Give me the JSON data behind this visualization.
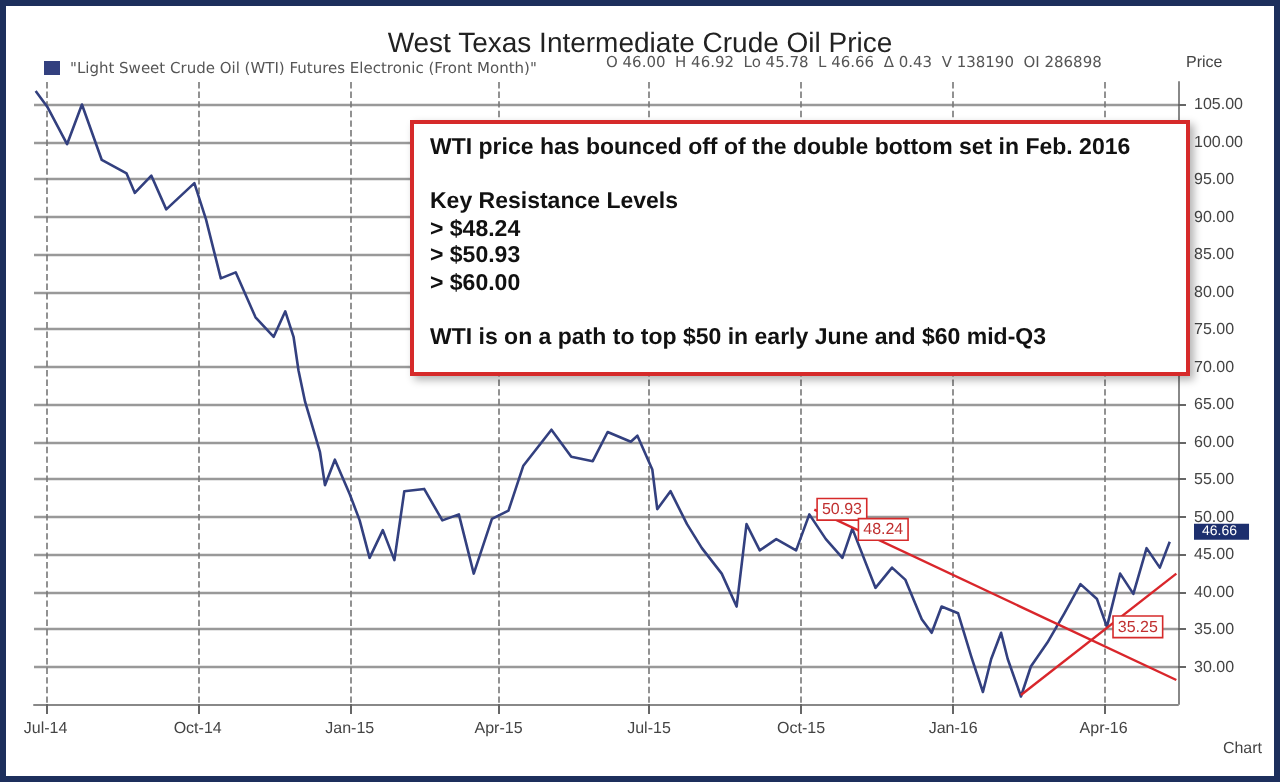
{
  "chart_data": {
    "type": "line",
    "title": "West Texas Intermediate Crude Oil Price",
    "ylabel": "Price",
    "x": [
      "2014-06-25",
      "2014-07-02",
      "2014-07-14",
      "2014-07-23",
      "2014-08-04",
      "2014-08-19",
      "2014-08-24",
      "2014-09-03",
      "2014-09-12",
      "2014-09-29",
      "2014-10-06",
      "2014-10-15",
      "2014-10-24",
      "2014-11-05",
      "2014-11-16",
      "2014-11-23",
      "2014-11-28",
      "2014-12-01",
      "2014-12-05",
      "2014-12-10",
      "2014-12-14",
      "2014-12-17",
      "2014-12-23",
      "2015-01-01",
      "2015-01-07",
      "2015-01-13",
      "2015-01-21",
      "2015-01-28",
      "2015-02-03",
      "2015-02-15",
      "2015-02-26",
      "2015-03-08",
      "2015-03-17",
      "2015-03-28",
      "2015-04-07",
      "2015-04-16",
      "2015-05-03",
      "2015-05-15",
      "2015-05-28",
      "2015-06-06",
      "2015-06-20",
      "2015-06-24",
      "2015-07-03",
      "2015-07-06",
      "2015-07-14",
      "2015-07-24",
      "2015-08-02",
      "2015-08-14",
      "2015-08-23",
      "2015-08-29",
      "2015-09-06",
      "2015-09-16",
      "2015-09-28",
      "2015-10-06",
      "2015-10-16",
      "2015-10-26",
      "2015-11-01",
      "2015-11-15",
      "2015-11-25",
      "2015-12-03",
      "2015-12-13",
      "2015-12-19",
      "2015-12-25",
      "2016-01-04",
      "2016-01-12",
      "2016-01-19",
      "2016-01-24",
      "2016-01-30",
      "2016-02-03",
      "2016-02-11",
      "2016-02-17",
      "2016-02-27",
      "2016-03-08",
      "2016-03-18",
      "2016-03-28",
      "2016-04-03",
      "2016-04-11",
      "2016-04-19",
      "2016-04-27",
      "2016-05-05",
      "2016-05-11"
    ],
    "series": [
      {
        "name": "\"Light Sweet Crude Oil (WTI) Futures Electronic (Front Month)\"",
        "color": "#33407f",
        "values": [
          106.8,
          104.7,
          99.7,
          105,
          97.6,
          95.8,
          93.2,
          95.5,
          91,
          94.5,
          89.7,
          81.8,
          82.6,
          76.6,
          74,
          77.4,
          74,
          69.5,
          65.3,
          61.6,
          58.6,
          54.2,
          57.6,
          53,
          49.5,
          44.5,
          48.2,
          44.2,
          53.4,
          53.7,
          49.5,
          50.3,
          42.4,
          49.7,
          50.8,
          56.8,
          61.6,
          58,
          57.4,
          61.3,
          60,
          60.8,
          56.3,
          51,
          53.4,
          49,
          45.8,
          42.4,
          38,
          49,
          45.5,
          47,
          45.5,
          50.3,
          47,
          44.5,
          48.4,
          40.5,
          43.2,
          41.6,
          36.3,
          34.5,
          38,
          37.1,
          31.3,
          26.6,
          31,
          34.5,
          31,
          26,
          30,
          33.2,
          37,
          41,
          39,
          35.3,
          42.4,
          39.7,
          45.8,
          43.2,
          46.66
        ]
      },
      {
        "type": "line",
        "color": "#d9262b",
        "x": [
          "2015-10-09",
          "2016-05-15"
        ],
        "values": [
          50.93,
          28.2
        ]
      },
      {
        "type": "line",
        "color": "#d9262b",
        "x": [
          "2016-02-11",
          "2016-05-15"
        ],
        "values": [
          26.2,
          42.4
        ]
      }
    ],
    "xlim": [
      "2014-06-24",
      "2016-05-16"
    ],
    "xticks": [
      {
        "value": "2014-07-01",
        "label": "Jul-14"
      },
      {
        "value": "2014-10-01",
        "label": "Oct-14"
      },
      {
        "value": "2015-01-01",
        "label": "Jan-15"
      },
      {
        "value": "2015-04-01",
        "label": "Apr-15"
      },
      {
        "value": "2015-07-01",
        "label": "Jul-15"
      },
      {
        "value": "2015-10-01",
        "label": "Oct-15"
      },
      {
        "value": "2016-01-01",
        "label": "Jan-16"
      },
      {
        "value": "2016-04-01",
        "label": "Apr-16"
      }
    ],
    "ylim": [
      25,
      108
    ],
    "yticks": [
      {
        "value": 30,
        "label": "30.00"
      },
      {
        "value": 35,
        "label": "35.00"
      },
      {
        "value": 40,
        "label": "40.00"
      },
      {
        "value": 45,
        "label": "45.00"
      },
      {
        "value": 50,
        "label": "50.00"
      },
      {
        "value": 55,
        "label": "55.00"
      },
      {
        "value": 60,
        "label": "60.00"
      },
      {
        "value": 65,
        "label": "65.00"
      },
      {
        "value": 70,
        "label": "70.00"
      },
      {
        "value": 75,
        "label": "75.00"
      },
      {
        "value": 80,
        "label": "80.00"
      },
      {
        "value": 85,
        "label": "85.00"
      },
      {
        "value": 90,
        "label": "90.00"
      },
      {
        "value": 95,
        "label": "95.00"
      },
      {
        "value": 100,
        "label": "100.00"
      },
      {
        "value": 105,
        "label": "105.00"
      }
    ],
    "grid": true,
    "legend": "top left",
    "marker": "none",
    "line_style": "solid",
    "annotations": [
      "O 46.00  H 46.92  Lo 45.78  L 46.66  Δ 0.43  V 138190  OI 286898",
      "WTI price has bounced off of the double bottom set in Feb. 2016",
      "Key Resistance Levels",
      "> $48.24",
      "> $50.93",
      "> $60.00",
      "WTI is on a path to top $50 in early June and $60 mid-Q3",
      "Chart",
      {
        "text": "50.93",
        "x": "2015-10-09",
        "y": 50.93
      },
      {
        "text": "48.24",
        "x": "2015-11-03",
        "y": 48.24
      },
      {
        "text": "35.25",
        "x": "2016-04-05",
        "y": 35.25
      },
      {
        "text": "46.66",
        "x": "2016-05-11",
        "y": 46.66
      }
    ]
  }
}
